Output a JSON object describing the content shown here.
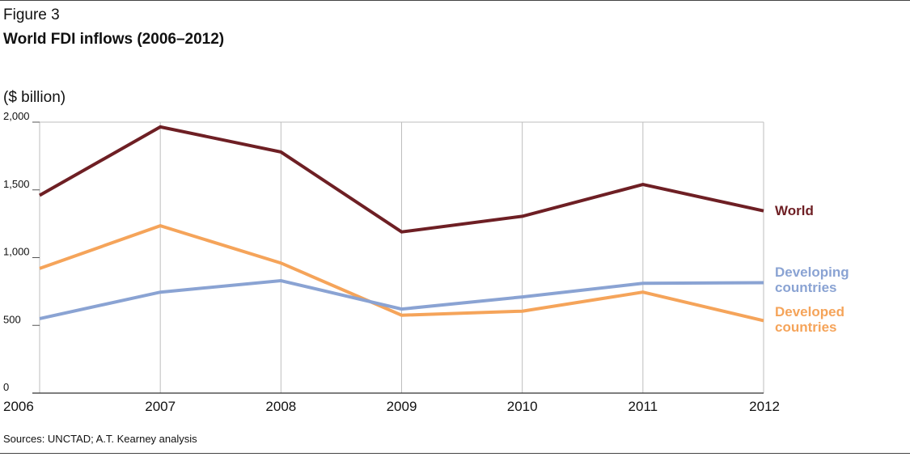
{
  "header": {
    "figure_label": "Figure 3",
    "title": "World FDI inflows (2006–2012)",
    "unit": "($ billion)"
  },
  "footer": {
    "source": "Sources: UNCTAD; A.T. Kearney analysis"
  },
  "chart_data": {
    "type": "line",
    "title": "World FDI inflows (2006–2012)",
    "ylabel": "($ billion)",
    "xlabel": "",
    "x": [
      2006,
      2007,
      2008,
      2009,
      2010,
      2011,
      2012
    ],
    "x_tick_labels": [
      "2006",
      "2007",
      "2008",
      "2009",
      "2010",
      "2011",
      "2012"
    ],
    "y_ticks": [
      0,
      500,
      1000,
      1500,
      2000
    ],
    "y_tick_labels": [
      "0",
      "500",
      "1,000",
      "1,500",
      "2,000"
    ],
    "ylim": [
      0,
      2000
    ],
    "grid": "vertical",
    "legend_placement": "right (inline labels)",
    "series": [
      {
        "name": "World",
        "label_lines": [
          "World"
        ],
        "color": "#6e1f24",
        "values": [
          1460,
          1965,
          1780,
          1190,
          1305,
          1540,
          1345
        ]
      },
      {
        "name": "Developing countries",
        "label_lines": [
          "Developing",
          "countries"
        ],
        "color": "#8aa3d3",
        "values": [
          550,
          745,
          830,
          620,
          710,
          810,
          815
        ]
      },
      {
        "name": "Developed countries",
        "label_lines": [
          "Developed",
          "countries"
        ],
        "color": "#f5a45a",
        "values": [
          920,
          1235,
          960,
          575,
          605,
          745,
          535
        ]
      }
    ]
  }
}
